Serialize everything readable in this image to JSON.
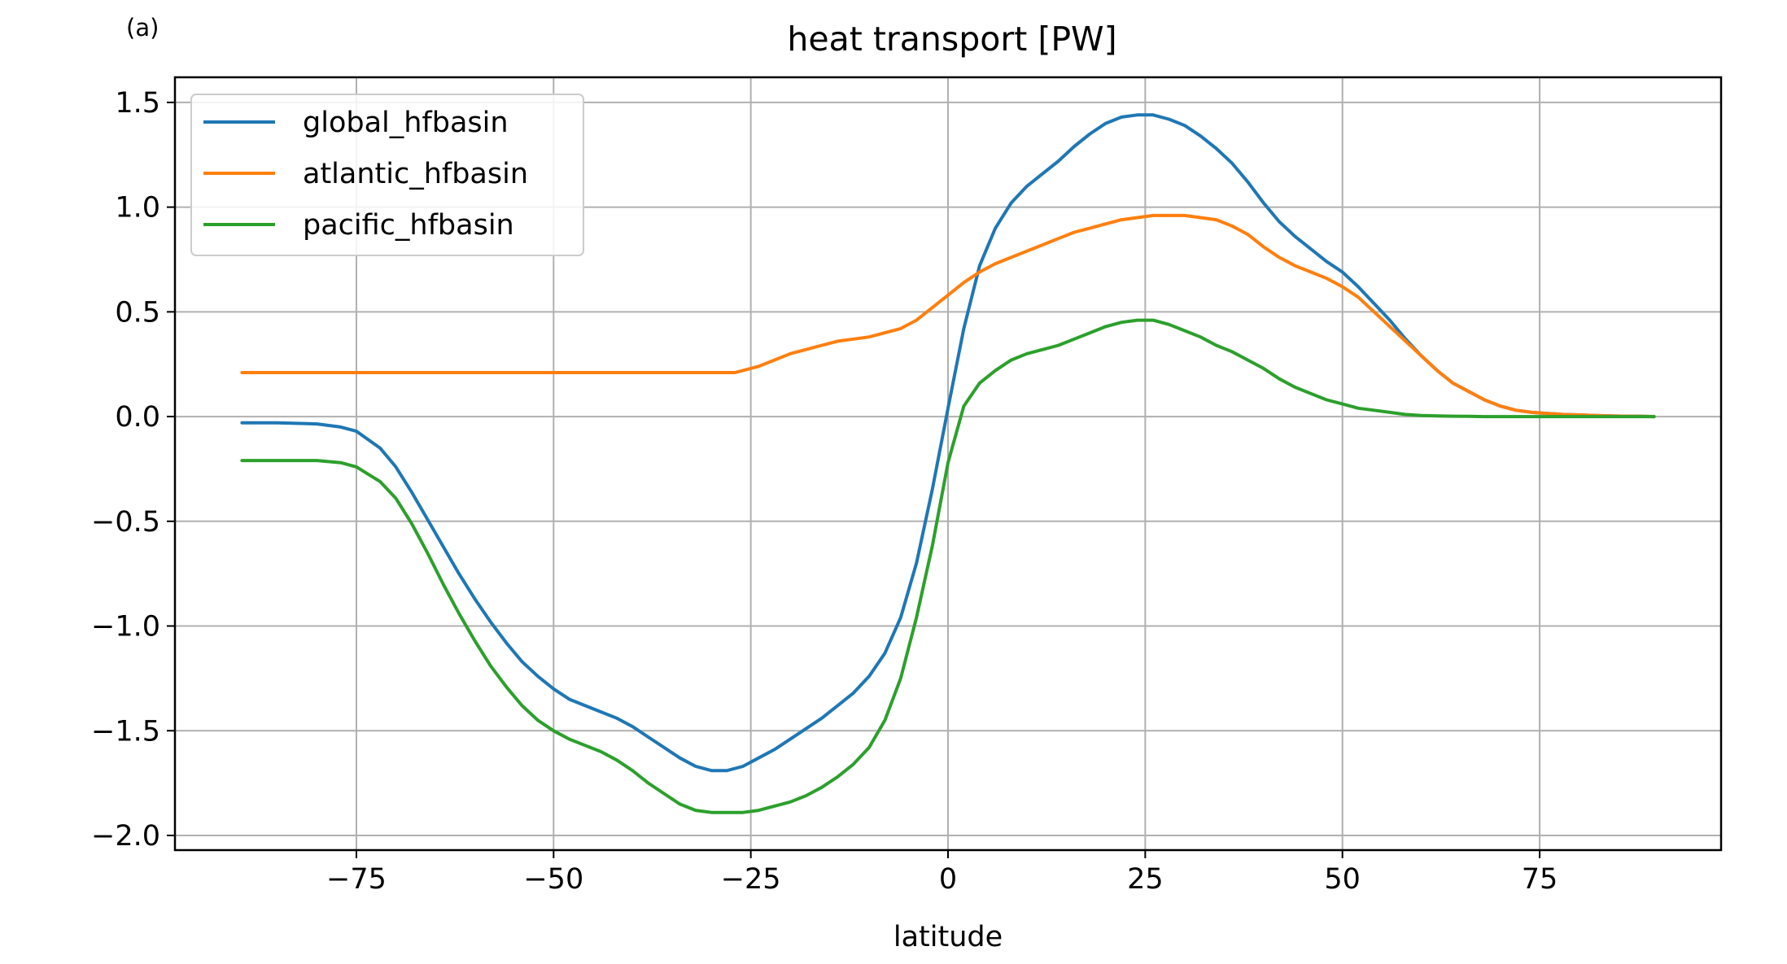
{
  "panel_label": "(a)",
  "chart_data": {
    "type": "line",
    "title": "heat transport [PW]",
    "xlabel": "latitude",
    "ylabel": "",
    "xlim": [
      -98,
      98
    ],
    "ylim": [
      -2.07,
      1.62
    ],
    "xticks": [
      -75,
      -50,
      -25,
      0,
      25,
      50,
      75
    ],
    "xtick_labels": [
      "−75",
      "−50",
      "−25",
      "0",
      "25",
      "50",
      "75"
    ],
    "yticks": [
      -2.0,
      -1.5,
      -1.0,
      -0.5,
      0.0,
      0.5,
      1.0,
      1.5
    ],
    "ytick_labels": [
      "−2.0",
      "−1.5",
      "−1.0",
      "−0.5",
      "0.0",
      "0.5",
      "1.0",
      "1.5"
    ],
    "grid": true,
    "legend_position": "top-left",
    "series": [
      {
        "name": "global_hfbasin",
        "color": "#1f77b4",
        "x": [
          -89.5,
          -85,
          -80,
          -77,
          -75,
          -72,
          -70,
          -68,
          -66,
          -64,
          -62,
          -60,
          -58,
          -56,
          -54,
          -52,
          -50,
          -48,
          -46,
          -44,
          -42,
          -40,
          -38,
          -36,
          -34,
          -32,
          -30,
          -28,
          -26,
          -24,
          -22,
          -20,
          -18,
          -16,
          -14,
          -12,
          -10,
          -8,
          -6,
          -4,
          -2,
          0,
          2,
          4,
          6,
          8,
          10,
          12,
          14,
          16,
          18,
          20,
          22,
          24,
          25,
          26,
          28,
          30,
          32,
          34,
          36,
          38,
          40,
          42,
          44,
          46,
          48,
          50,
          52,
          54,
          56,
          58,
          60,
          62,
          64,
          66,
          68,
          70,
          72,
          74,
          76,
          78,
          80,
          82,
          84,
          86,
          88,
          89.5
        ],
        "y": [
          -0.03,
          -0.03,
          -0.035,
          -0.05,
          -0.07,
          -0.15,
          -0.24,
          -0.36,
          -0.49,
          -0.62,
          -0.75,
          -0.87,
          -0.98,
          -1.08,
          -1.17,
          -1.24,
          -1.3,
          -1.35,
          -1.38,
          -1.41,
          -1.44,
          -1.48,
          -1.53,
          -1.58,
          -1.63,
          -1.67,
          -1.69,
          -1.69,
          -1.67,
          -1.63,
          -1.59,
          -1.54,
          -1.49,
          -1.44,
          -1.38,
          -1.32,
          -1.24,
          -1.13,
          -0.96,
          -0.7,
          -0.35,
          0.04,
          0.42,
          0.72,
          0.9,
          1.02,
          1.1,
          1.16,
          1.22,
          1.29,
          1.35,
          1.4,
          1.43,
          1.44,
          1.44,
          1.44,
          1.42,
          1.39,
          1.34,
          1.28,
          1.21,
          1.12,
          1.02,
          0.93,
          0.86,
          0.8,
          0.74,
          0.69,
          0.62,
          0.54,
          0.46,
          0.37,
          0.29,
          0.22,
          0.16,
          0.12,
          0.08,
          0.05,
          0.03,
          0.02,
          0.015,
          0.01,
          0.008,
          0.005,
          0.003,
          0.002,
          0.001,
          0.0
        ]
      },
      {
        "name": "atlantic_hfbasin",
        "color": "#ff7f0e",
        "x": [
          -89.5,
          -80,
          -70,
          -60,
          -50,
          -40,
          -30,
          -28,
          -27,
          -26,
          -24,
          -22,
          -20,
          -18,
          -16,
          -14,
          -12,
          -10,
          -8,
          -6,
          -4,
          -2,
          0,
          2,
          4,
          6,
          8,
          10,
          12,
          14,
          16,
          18,
          20,
          22,
          24,
          26,
          28,
          30,
          32,
          34,
          36,
          38,
          40,
          42,
          44,
          46,
          48,
          50,
          52,
          54,
          56,
          58,
          60,
          62,
          64,
          66,
          68,
          70,
          72,
          74,
          76,
          78,
          80,
          82,
          84,
          86,
          88,
          89.5
        ],
        "y": [
          0.21,
          0.21,
          0.21,
          0.21,
          0.21,
          0.21,
          0.21,
          0.21,
          0.21,
          0.22,
          0.24,
          0.27,
          0.3,
          0.32,
          0.34,
          0.36,
          0.37,
          0.38,
          0.4,
          0.42,
          0.46,
          0.52,
          0.58,
          0.64,
          0.69,
          0.73,
          0.76,
          0.79,
          0.82,
          0.85,
          0.88,
          0.9,
          0.92,
          0.94,
          0.95,
          0.96,
          0.96,
          0.96,
          0.95,
          0.94,
          0.91,
          0.87,
          0.81,
          0.76,
          0.72,
          0.69,
          0.66,
          0.62,
          0.57,
          0.5,
          0.43,
          0.36,
          0.29,
          0.22,
          0.16,
          0.12,
          0.08,
          0.05,
          0.03,
          0.02,
          0.015,
          0.01,
          0.008,
          0.005,
          0.003,
          0.002,
          0.001,
          0.0
        ]
      },
      {
        "name": "pacific_hfbasin",
        "color": "#2ca02c",
        "x": [
          -89.5,
          -85,
          -80,
          -77,
          -75,
          -72,
          -70,
          -68,
          -66,
          -64,
          -62,
          -60,
          -58,
          -56,
          -54,
          -52,
          -50,
          -48,
          -46,
          -44,
          -42,
          -40,
          -38,
          -36,
          -34,
          -32,
          -30,
          -28,
          -26,
          -24,
          -22,
          -20,
          -18,
          -16,
          -14,
          -12,
          -10,
          -8,
          -6,
          -4,
          -2,
          0,
          2,
          4,
          6,
          8,
          10,
          12,
          14,
          16,
          18,
          20,
          22,
          24,
          25,
          26,
          28,
          30,
          32,
          34,
          36,
          38,
          40,
          42,
          44,
          46,
          48,
          50,
          52,
          54,
          56,
          58,
          60,
          62,
          64,
          66,
          68,
          70,
          72,
          74,
          76,
          78,
          80,
          82,
          84,
          86,
          88,
          89.5
        ],
        "y": [
          -0.21,
          -0.21,
          -0.21,
          -0.22,
          -0.24,
          -0.31,
          -0.39,
          -0.51,
          -0.65,
          -0.8,
          -0.94,
          -1.07,
          -1.19,
          -1.29,
          -1.38,
          -1.45,
          -1.5,
          -1.54,
          -1.57,
          -1.6,
          -1.64,
          -1.69,
          -1.75,
          -1.8,
          -1.85,
          -1.88,
          -1.89,
          -1.89,
          -1.89,
          -1.88,
          -1.86,
          -1.84,
          -1.81,
          -1.77,
          -1.72,
          -1.66,
          -1.58,
          -1.45,
          -1.25,
          -0.96,
          -0.62,
          -0.22,
          0.05,
          0.16,
          0.22,
          0.27,
          0.3,
          0.32,
          0.34,
          0.37,
          0.4,
          0.43,
          0.45,
          0.46,
          0.46,
          0.46,
          0.44,
          0.41,
          0.38,
          0.34,
          0.31,
          0.27,
          0.23,
          0.18,
          0.14,
          0.11,
          0.08,
          0.06,
          0.04,
          0.03,
          0.02,
          0.01,
          0.005,
          0.003,
          0.002,
          0.001,
          0.0,
          0.0,
          0.0,
          0.0,
          0.0,
          0.0,
          0.0,
          0.0,
          0.0,
          0.0,
          0.0,
          0.0
        ]
      }
    ]
  }
}
